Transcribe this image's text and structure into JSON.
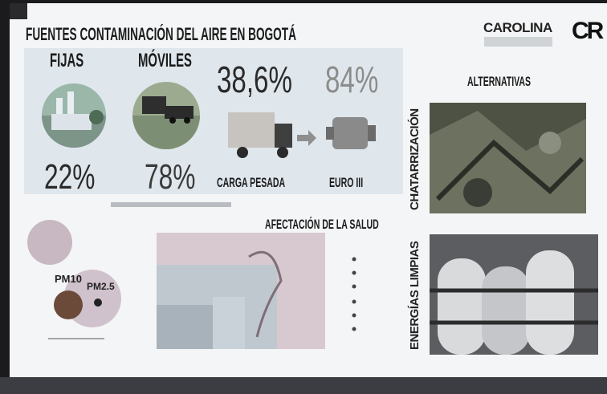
{
  "header": {
    "title": "FUENTES CONTAMINACIÓN DEL AIRE EN BOGOTÁ",
    "logo": "CAROLINA",
    "logo_mark": "CR"
  },
  "sources": {
    "fixed": {
      "label": "FIJAS",
      "share": "22%"
    },
    "mobile": {
      "label": "MÓVILES",
      "share": "78%"
    }
  },
  "heavy_cargo": {
    "share": "38,6%",
    "label": "CARGA PESADA"
  },
  "euro": {
    "share": "84%",
    "label": "EURO III"
  },
  "alternatives": {
    "title": "ALTERNATIVAS",
    "items": [
      "CHATARRIZACIÓN",
      "ENERGÍAS LIMPIAS"
    ]
  },
  "health": {
    "title": "AFECTACIÓN DE LA SALUD",
    "particles": [
      "PM10",
      "PM2.5"
    ]
  }
}
